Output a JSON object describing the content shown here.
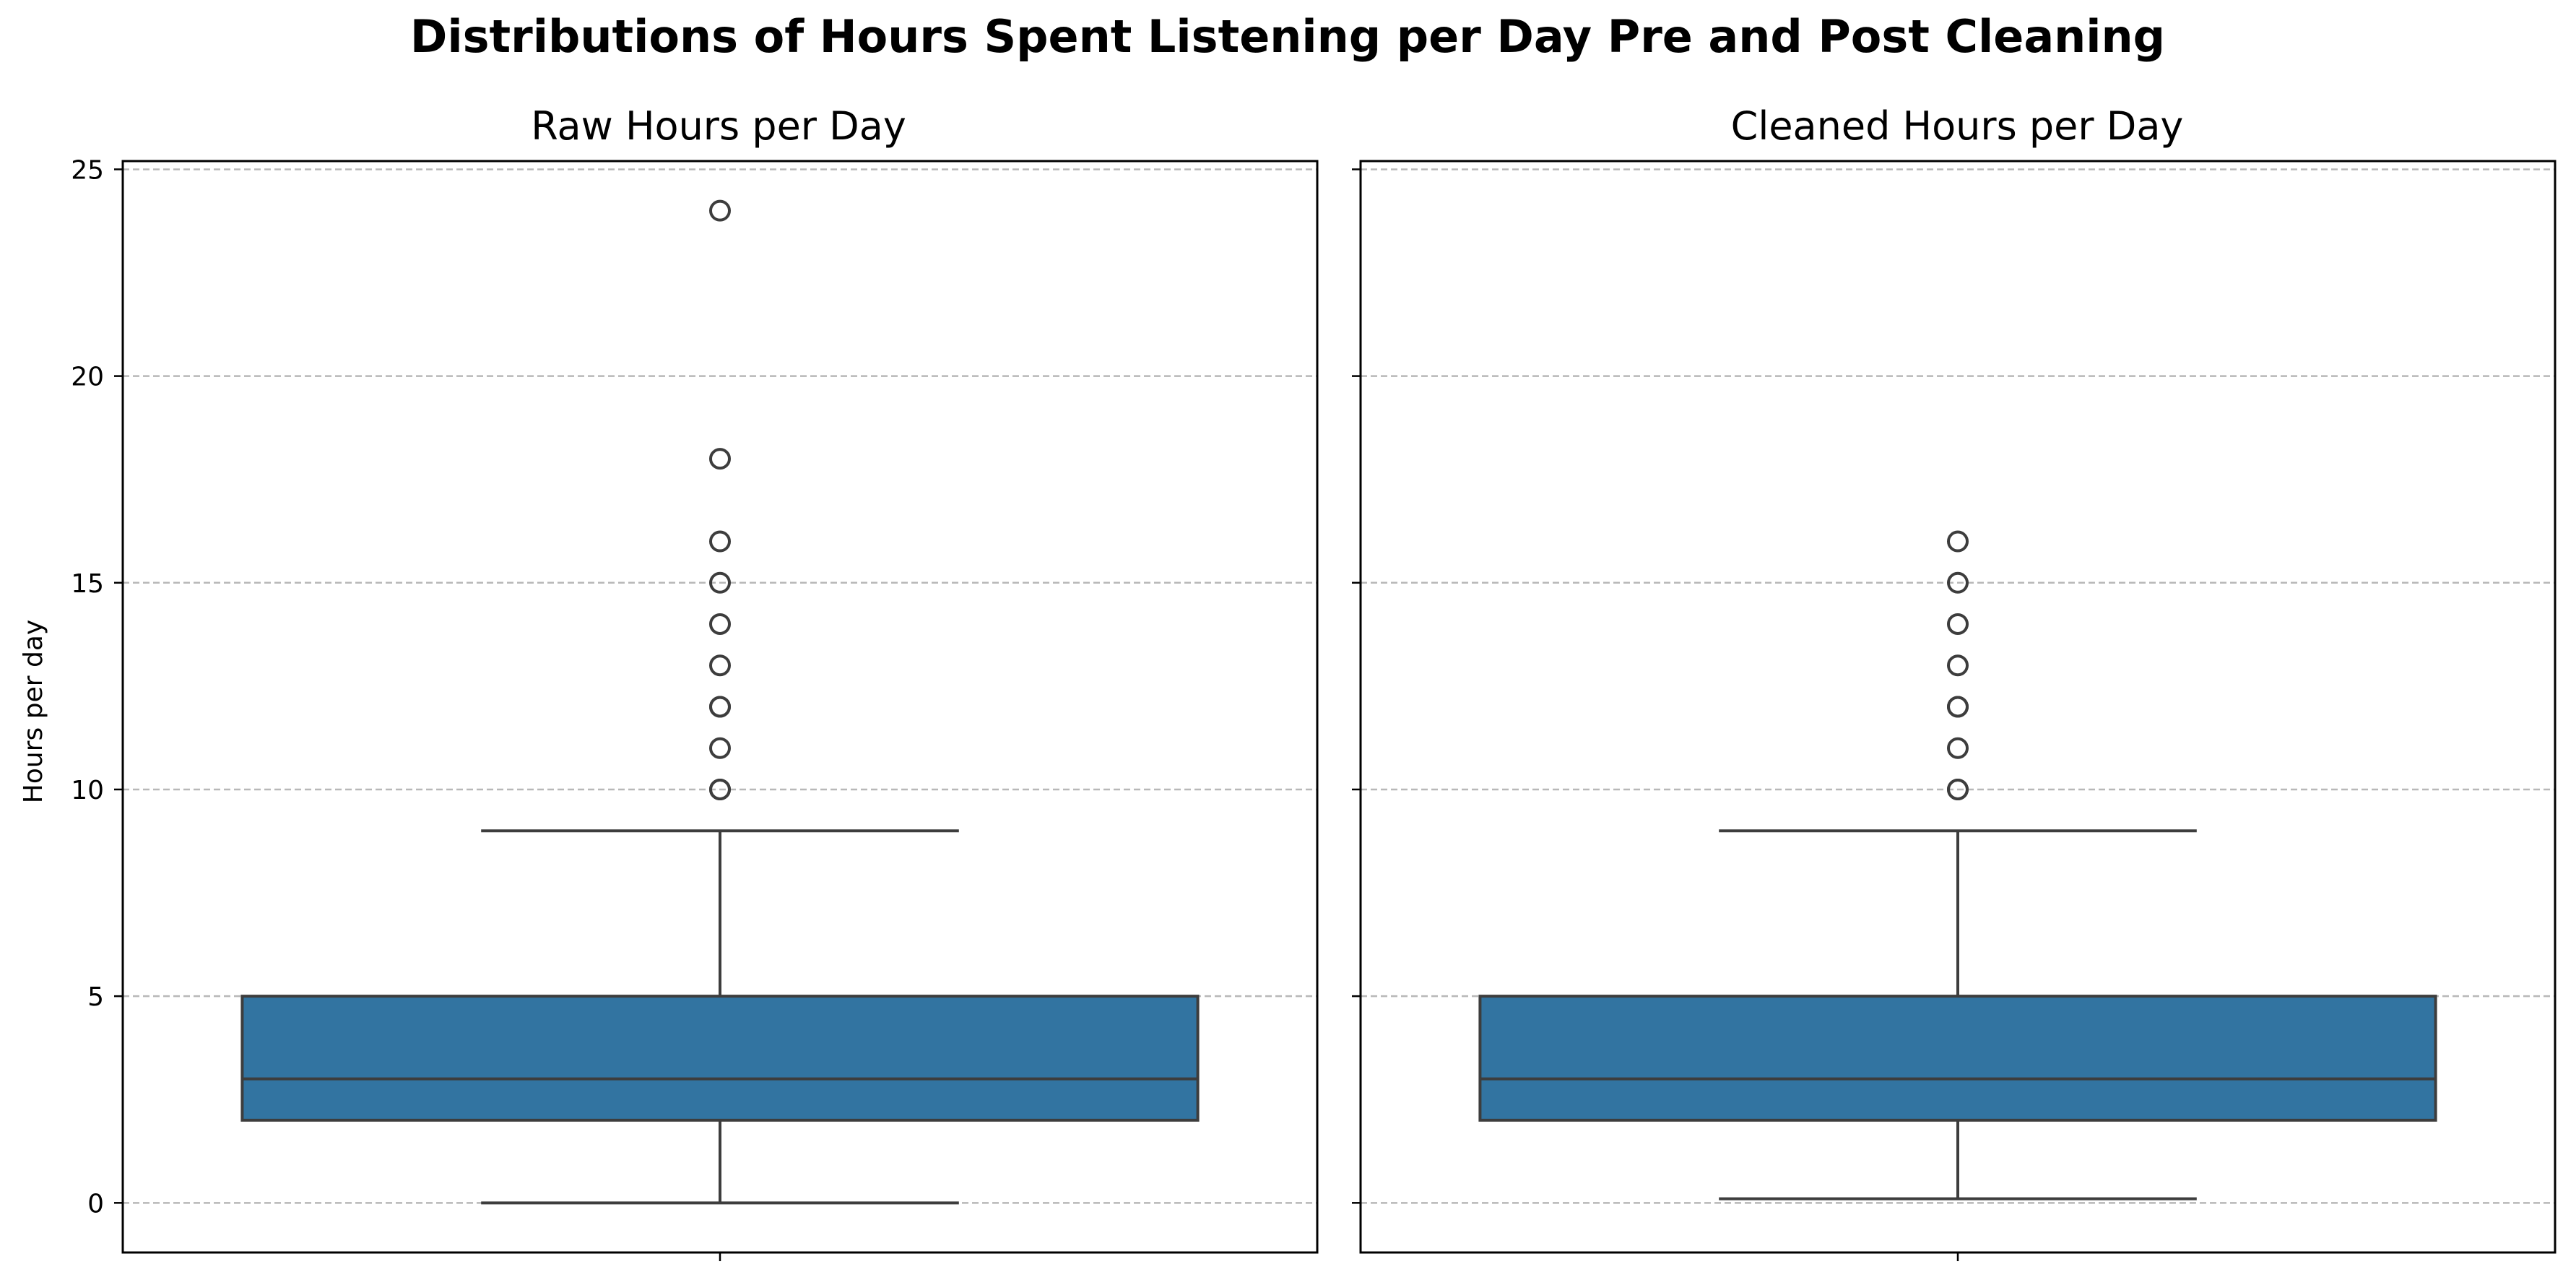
{
  "figure": {
    "title": "Distributions of Hours Spent Listening per Day Pre and Post Cleaning"
  },
  "colors": {
    "box_fill": "#3274a1",
    "box_line": "#3d3d3d",
    "grid": "#b8b8b8"
  },
  "chart_data": [
    {
      "type": "box",
      "title": "Raw Hours per Day",
      "xlabel": "",
      "ylabel": "Hours per day",
      "ylim": [
        -1.2,
        25.2
      ],
      "yticks": [
        0,
        5,
        10,
        15,
        20,
        25
      ],
      "grid": true,
      "box": {
        "q1": 2,
        "median": 3,
        "q3": 5,
        "whisker_low": 0,
        "whisker_high": 9
      },
      "outliers": [
        10,
        10,
        11,
        12,
        12,
        13,
        14,
        15,
        16,
        18,
        24
      ]
    },
    {
      "type": "box",
      "title": "Cleaned Hours per Day",
      "xlabel": "",
      "ylabel": "",
      "ylim": [
        -1.2,
        25.2
      ],
      "yticks": [
        0,
        5,
        10,
        15,
        20,
        25
      ],
      "grid": true,
      "shared_y": true,
      "box": {
        "q1": 2,
        "median": 3,
        "q3": 5,
        "whisker_low": 0.1,
        "whisker_high": 9
      },
      "outliers": [
        10,
        10,
        11,
        12,
        12,
        13,
        14,
        15,
        16
      ]
    }
  ]
}
